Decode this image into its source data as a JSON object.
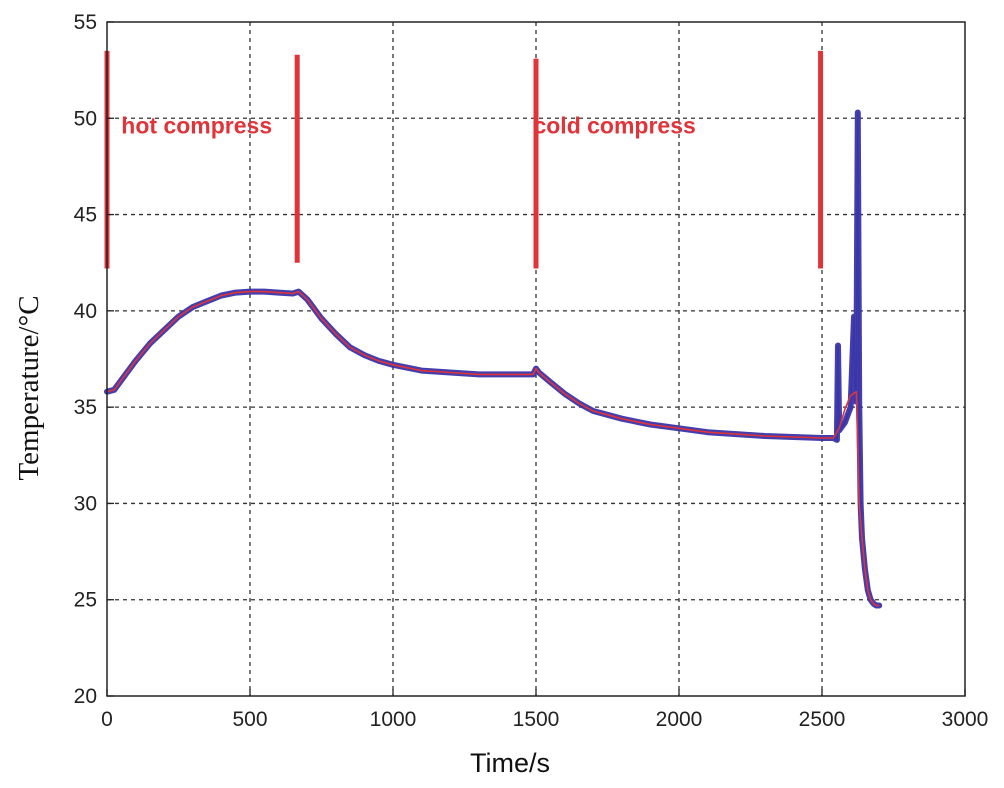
{
  "chart_data": {
    "type": "line",
    "title": "",
    "xlabel": "Time/s",
    "ylabel": "Temperature/°C",
    "xlim": [
      0,
      3000
    ],
    "ylim": [
      20,
      55
    ],
    "xticks": [
      0,
      500,
      1000,
      1500,
      2000,
      2500,
      3000
    ],
    "yticks": [
      20,
      25,
      30,
      35,
      40,
      45,
      50,
      55
    ],
    "grid": true,
    "legend": "none",
    "colors": {
      "measured": "#3a35a8",
      "fitted": "#e0343a",
      "markers": "#e0343a"
    },
    "series": [
      {
        "x": [
          0,
          25,
          50,
          100,
          150,
          200,
          250,
          300,
          350,
          400,
          450,
          500,
          550,
          600,
          650,
          670,
          700,
          750,
          800,
          850,
          900,
          950,
          1000,
          1100,
          1200,
          1300,
          1400,
          1490,
          1500,
          1510,
          1550,
          1600,
          1650,
          1700,
          1750,
          1800,
          1900,
          2000,
          2100,
          2200,
          2300,
          2400,
          2500,
          2540,
          2552,
          2556,
          2560,
          2580,
          2600,
          2612,
          2615,
          2620,
          2625,
          2630,
          2635,
          2640,
          2650,
          2660,
          2670,
          2680,
          2690,
          2700
        ],
        "y": [
          35.8,
          35.9,
          36.4,
          37.4,
          38.3,
          39.0,
          39.7,
          40.2,
          40.5,
          40.8,
          40.95,
          41.0,
          41.0,
          40.95,
          40.9,
          41.0,
          40.6,
          39.6,
          38.8,
          38.1,
          37.7,
          37.4,
          37.2,
          36.9,
          36.8,
          36.7,
          36.7,
          36.7,
          37.0,
          36.8,
          36.3,
          35.7,
          35.2,
          34.8,
          34.6,
          34.4,
          34.1,
          33.9,
          33.7,
          33.6,
          33.5,
          33.45,
          33.4,
          33.4,
          33.3,
          38.2,
          33.8,
          34.2,
          35.0,
          39.7,
          35.3,
          36.0,
          50.3,
          35.2,
          30.0,
          28.2,
          26.6,
          25.5,
          25.0,
          24.8,
          24.7,
          24.7
        ]
      },
      {
        "x": [
          0,
          25,
          50,
          100,
          150,
          200,
          250,
          300,
          350,
          400,
          450,
          500,
          550,
          600,
          650,
          670,
          700,
          750,
          800,
          850,
          900,
          950,
          1000,
          1100,
          1200,
          1300,
          1400,
          1490,
          1500,
          1510,
          1550,
          1600,
          1650,
          1700,
          1750,
          1800,
          1900,
          2000,
          2100,
          2200,
          2300,
          2400,
          2500,
          2540,
          2560,
          2580,
          2600,
          2620,
          2630,
          2640,
          2650,
          2660,
          2670,
          2680,
          2690,
          2700
        ],
        "y": [
          35.8,
          35.9,
          36.4,
          37.4,
          38.3,
          39.0,
          39.7,
          40.2,
          40.5,
          40.8,
          40.95,
          41.0,
          41.0,
          40.95,
          40.9,
          41.0,
          40.6,
          39.6,
          38.8,
          38.1,
          37.7,
          37.4,
          37.2,
          36.9,
          36.8,
          36.7,
          36.7,
          36.7,
          37.0,
          36.8,
          36.3,
          35.7,
          35.2,
          34.8,
          34.6,
          34.4,
          34.1,
          33.9,
          33.7,
          33.6,
          33.5,
          33.45,
          33.4,
          33.4,
          33.9,
          34.9,
          35.6,
          35.8,
          30.0,
          28.2,
          26.6,
          25.5,
          25.0,
          24.8,
          24.7,
          24.7
        ]
      }
    ],
    "markers": [
      {
        "x": 0,
        "y_from": 42.2,
        "y_to": 53.5
      },
      {
        "x": 665,
        "y_from": 42.5,
        "y_to": 53.3
      },
      {
        "x": 1500,
        "y_from": 42.2,
        "y_to": 53.1
      },
      {
        "x": 2495,
        "y_from": 42.2,
        "y_to": 53.5
      }
    ],
    "annotations": [
      {
        "text": "hot compress",
        "x": 50,
        "y": 49.2
      },
      {
        "text": "cold compress",
        "x": 1775,
        "y": 49.2,
        "anchor": "middle"
      }
    ]
  }
}
